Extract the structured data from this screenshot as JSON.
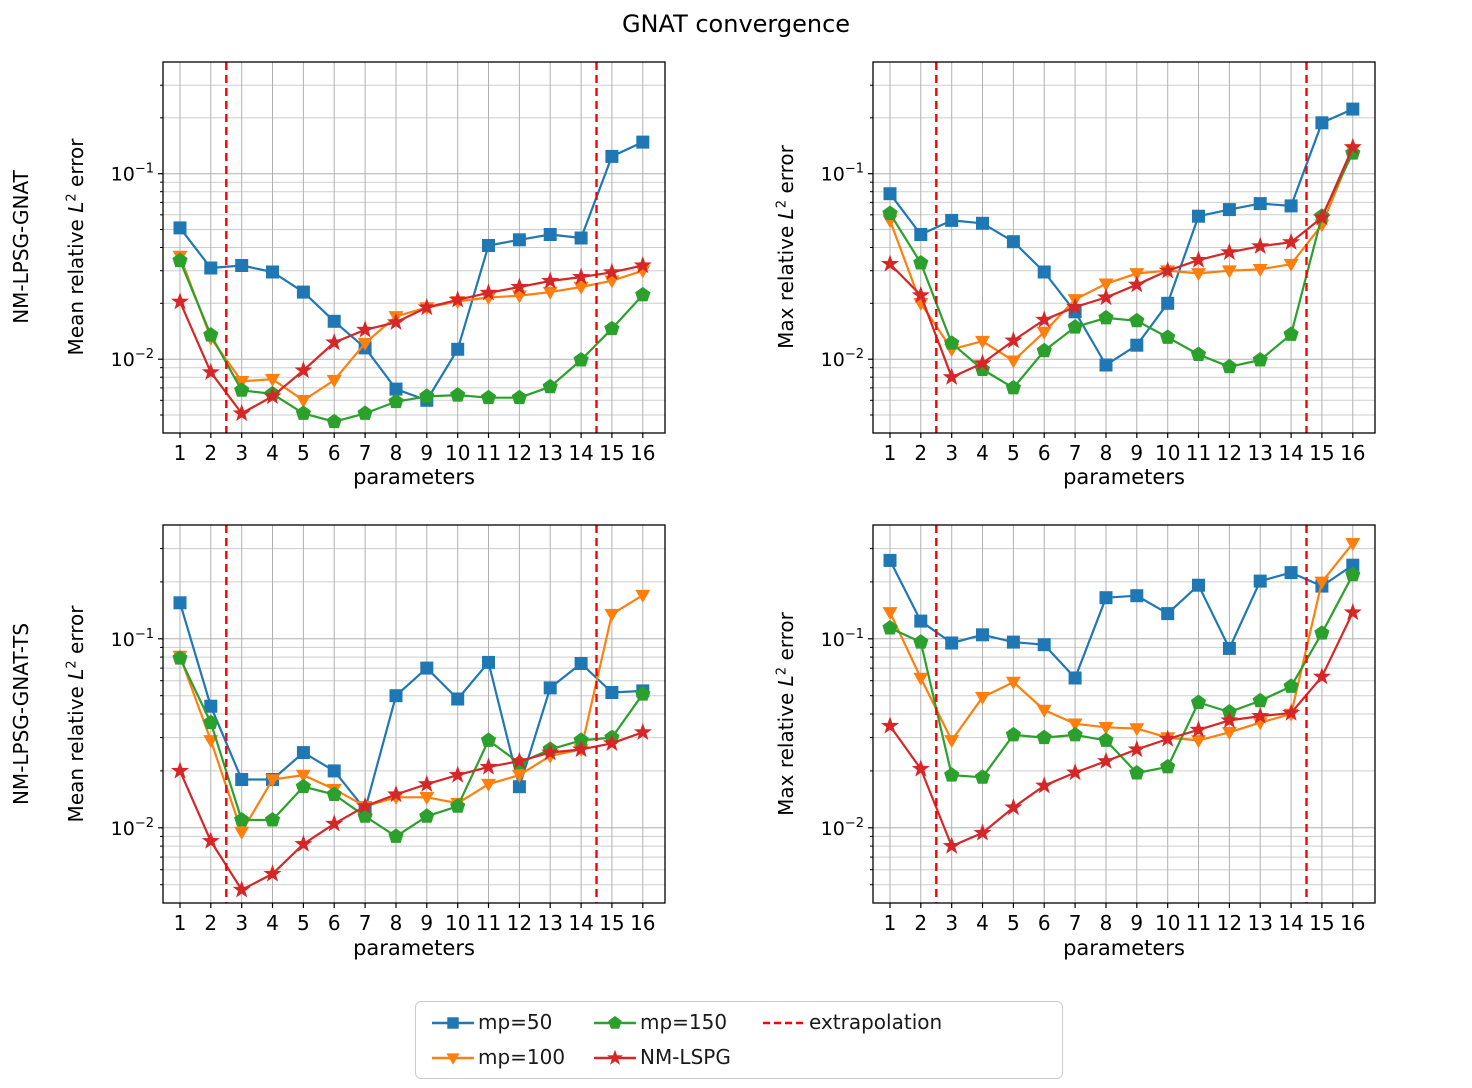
{
  "title": "GNAT convergence",
  "rows": [
    {
      "label": "NM-LPSG-GNAT"
    },
    {
      "label": "NM-LPSG-GNAT-TS"
    }
  ],
  "xlabel": "parameters",
  "x_tick_labels": [
    "1",
    "2",
    "3",
    "4",
    "5",
    "6",
    "7",
    "8",
    "9",
    "10",
    "11",
    "12",
    "13",
    "14",
    "15",
    "16"
  ],
  "y_tick_labels": [
    {
      "text": "10",
      "exp": "−1",
      "value": 0.1
    },
    {
      "text": "10",
      "exp": "−2",
      "value": 0.01
    }
  ],
  "ylabels": {
    "mean": {
      "pre": "Mean relative ",
      "sym": "L",
      "sup": "2",
      "post": " error"
    },
    "max": {
      "pre": "Max relative ",
      "sym": "L",
      "sup": "2",
      "post": " error"
    }
  },
  "colors": {
    "mp50": "#1f77b4",
    "mp100": "#ff7f0e",
    "mp150": "#2ca02c",
    "nm_lspg": "#d62728",
    "extrapolation": "#ff0000",
    "grid_major": "#b0b0b0",
    "grid_minor": "#cdcdcd",
    "spine": "#000000"
  },
  "legend": {
    "entries": [
      {
        "label": "mp=50",
        "color": "#1f77b4",
        "marker": "square",
        "line": "solid",
        "col": 0,
        "row": 0
      },
      {
        "label": "mp=100",
        "color": "#ff7f0e",
        "marker": "triangle-down",
        "line": "solid",
        "col": 0,
        "row": 1
      },
      {
        "label": "mp=150",
        "color": "#2ca02c",
        "marker": "pentagon",
        "line": "solid",
        "col": 1,
        "row": 0
      },
      {
        "label": "NM-LSPG",
        "color": "#d62728",
        "marker": "star",
        "line": "solid",
        "col": 1,
        "row": 1
      },
      {
        "label": "extrapolation",
        "color": "#ff0000",
        "marker": "none",
        "line": "dashed",
        "col": 2,
        "row": 0
      }
    ]
  },
  "chart_data": [
    {
      "id": "nm-lpsg-gnat-mean",
      "position": "top-left",
      "type": "line",
      "row_label": "NM-LPSG-GNAT",
      "ylabel": "Mean relative L² error",
      "xlabel": "parameters",
      "yscale": "log",
      "xlim": [
        0.45,
        16.72
      ],
      "ylim": [
        0.004,
        0.4
      ],
      "grid": "both",
      "extrapolation_x": [
        2.5,
        14.5
      ],
      "x": [
        1,
        2,
        3,
        4,
        5,
        6,
        7,
        8,
        9,
        10,
        11,
        12,
        13,
        14,
        15,
        16
      ],
      "series": [
        {
          "name": "mp=50",
          "color": "#1f77b4",
          "marker": "square",
          "values": [
            0.051,
            0.031,
            0.032,
            0.0295,
            0.023,
            0.016,
            0.0115,
            0.0069,
            0.006,
            0.0113,
            0.041,
            0.044,
            0.047,
            0.045,
            0.124,
            0.148
          ]
        },
        {
          "name": "mp=100",
          "color": "#ff7f0e",
          "marker": "triangle-down",
          "values": [
            0.036,
            0.013,
            0.0076,
            0.0078,
            0.006,
            0.0077,
            0.0122,
            0.017,
            0.019,
            0.0205,
            0.0215,
            0.022,
            0.023,
            0.0245,
            0.0265,
            0.03
          ]
        },
        {
          "name": "mp=150",
          "color": "#2ca02c",
          "marker": "pentagon",
          "values": [
            0.034,
            0.0135,
            0.0068,
            0.0065,
            0.0051,
            0.0046,
            0.0051,
            0.0059,
            0.0063,
            0.0064,
            0.0062,
            0.0062,
            0.0071,
            0.0099,
            0.0146,
            0.0222
          ]
        },
        {
          "name": "NM-LSPG",
          "color": "#d62728",
          "marker": "star",
          "values": [
            0.0204,
            0.0085,
            0.0051,
            0.0063,
            0.0087,
            0.0123,
            0.0144,
            0.0158,
            0.019,
            0.0209,
            0.0228,
            0.0245,
            0.0264,
            0.0277,
            0.0294,
            0.032
          ]
        }
      ]
    },
    {
      "id": "nm-lpsg-gnat-max",
      "position": "top-right",
      "type": "line",
      "row_label": "NM-LPSG-GNAT",
      "ylabel": "Max relative L² error",
      "xlabel": "parameters",
      "yscale": "log",
      "xlim": [
        0.45,
        16.72
      ],
      "ylim": [
        0.004,
        0.4
      ],
      "grid": "both",
      "extrapolation_x": [
        2.5,
        14.5
      ],
      "x": [
        1,
        2,
        3,
        4,
        5,
        6,
        7,
        8,
        9,
        10,
        11,
        12,
        13,
        14,
        15,
        16
      ],
      "series": [
        {
          "name": "mp=50",
          "color": "#1f77b4",
          "marker": "square",
          "values": [
            0.078,
            0.047,
            0.056,
            0.054,
            0.043,
            0.0295,
            0.018,
            0.0093,
            0.0119,
            0.02,
            0.059,
            0.064,
            0.069,
            0.067,
            0.188,
            0.223
          ]
        },
        {
          "name": "mp=100",
          "color": "#ff7f0e",
          "marker": "triangle-down",
          "values": [
            0.056,
            0.02,
            0.0113,
            0.0125,
            0.0098,
            0.014,
            0.021,
            0.0255,
            0.029,
            0.03,
            0.029,
            0.03,
            0.0305,
            0.0325,
            0.053,
            0.134
          ]
        },
        {
          "name": "mp=150",
          "color": "#2ca02c",
          "marker": "pentagon",
          "values": [
            0.061,
            0.033,
            0.0122,
            0.0088,
            0.007,
            0.0111,
            0.0149,
            0.0167,
            0.0161,
            0.0131,
            0.0106,
            0.0091,
            0.0099,
            0.0136,
            0.059,
            0.129
          ]
        },
        {
          "name": "NM-LSPG",
          "color": "#d62728",
          "marker": "star",
          "values": [
            0.0326,
            0.0221,
            0.008,
            0.0095,
            0.0126,
            0.0163,
            0.0191,
            0.0215,
            0.0252,
            0.03,
            0.0342,
            0.0377,
            0.0406,
            0.0427,
            0.058,
            0.139
          ]
        }
      ]
    },
    {
      "id": "nm-lpsg-gnat-ts-mean",
      "position": "bottom-left",
      "type": "line",
      "row_label": "NM-LPSG-GNAT-TS",
      "ylabel": "Mean relative L² error",
      "xlabel": "parameters",
      "yscale": "log",
      "xlim": [
        0.45,
        16.72
      ],
      "ylim": [
        0.004,
        0.4
      ],
      "grid": "both",
      "extrapolation_x": [
        2.5,
        14.5
      ],
      "x": [
        1,
        2,
        3,
        4,
        5,
        6,
        7,
        8,
        9,
        10,
        11,
        12,
        13,
        14,
        15,
        16
      ],
      "series": [
        {
          "name": "mp=50",
          "color": "#1f77b4",
          "marker": "square",
          "values": [
            0.155,
            0.044,
            0.018,
            0.018,
            0.025,
            0.02,
            0.0125,
            0.05,
            0.07,
            0.048,
            0.075,
            0.0165,
            0.055,
            0.074,
            0.052,
            0.053
          ]
        },
        {
          "name": "mp=100",
          "color": "#ff7f0e",
          "marker": "triangle-down",
          "values": [
            0.081,
            0.029,
            0.0095,
            0.018,
            0.019,
            0.016,
            0.013,
            0.0145,
            0.0145,
            0.0135,
            0.017,
            0.019,
            0.024,
            0.026,
            0.135,
            0.17
          ]
        },
        {
          "name": "mp=150",
          "color": "#2ca02c",
          "marker": "pentagon",
          "values": [
            0.079,
            0.036,
            0.011,
            0.011,
            0.0165,
            0.015,
            0.0115,
            0.009,
            0.0115,
            0.013,
            0.029,
            0.022,
            0.026,
            0.029,
            0.03,
            0.051
          ]
        },
        {
          "name": "NM-LSPG",
          "color": "#d62728",
          "marker": "star",
          "values": [
            0.02,
            0.0085,
            0.0047,
            0.0057,
            0.0082,
            0.0105,
            0.013,
            0.015,
            0.017,
            0.019,
            0.021,
            0.0225,
            0.025,
            0.026,
            0.028,
            0.032
          ]
        }
      ]
    },
    {
      "id": "nm-lpsg-gnat-ts-max",
      "position": "bottom-right",
      "type": "line",
      "row_label": "NM-LPSG-GNAT-TS",
      "ylabel": "Max relative L² error",
      "xlabel": "parameters",
      "yscale": "log",
      "xlim": [
        0.45,
        16.72
      ],
      "ylim": [
        0.004,
        0.4
      ],
      "grid": "both",
      "extrapolation_x": [
        2.5,
        14.5
      ],
      "x": [
        1,
        2,
        3,
        4,
        5,
        6,
        7,
        8,
        9,
        10,
        11,
        12,
        13,
        14,
        15,
        16
      ],
      "series": [
        {
          "name": "mp=50",
          "color": "#1f77b4",
          "marker": "square",
          "values": [
            0.26,
            0.124,
            0.095,
            0.105,
            0.096,
            0.093,
            0.062,
            0.165,
            0.169,
            0.136,
            0.192,
            0.089,
            0.202,
            0.224,
            0.19,
            0.245
          ]
        },
        {
          "name": "mp=100",
          "color": "#ff7f0e",
          "marker": "triangle-down",
          "values": [
            0.138,
            0.062,
            0.029,
            0.049,
            0.059,
            0.042,
            0.0355,
            0.034,
            0.0335,
            0.03,
            0.029,
            0.032,
            0.036,
            0.04,
            0.2,
            0.32
          ]
        },
        {
          "name": "mp=150",
          "color": "#2ca02c",
          "marker": "pentagon",
          "values": [
            0.114,
            0.096,
            0.019,
            0.0185,
            0.031,
            0.03,
            0.031,
            0.029,
            0.0195,
            0.021,
            0.046,
            0.041,
            0.047,
            0.056,
            0.107,
            0.218
          ]
        },
        {
          "name": "NM-LSPG",
          "color": "#d62728",
          "marker": "star",
          "values": [
            0.0346,
            0.0205,
            0.008,
            0.0094,
            0.0128,
            0.0167,
            0.0196,
            0.0225,
            0.026,
            0.0295,
            0.033,
            0.037,
            0.039,
            0.0405,
            0.063,
            0.138
          ]
        }
      ]
    }
  ]
}
